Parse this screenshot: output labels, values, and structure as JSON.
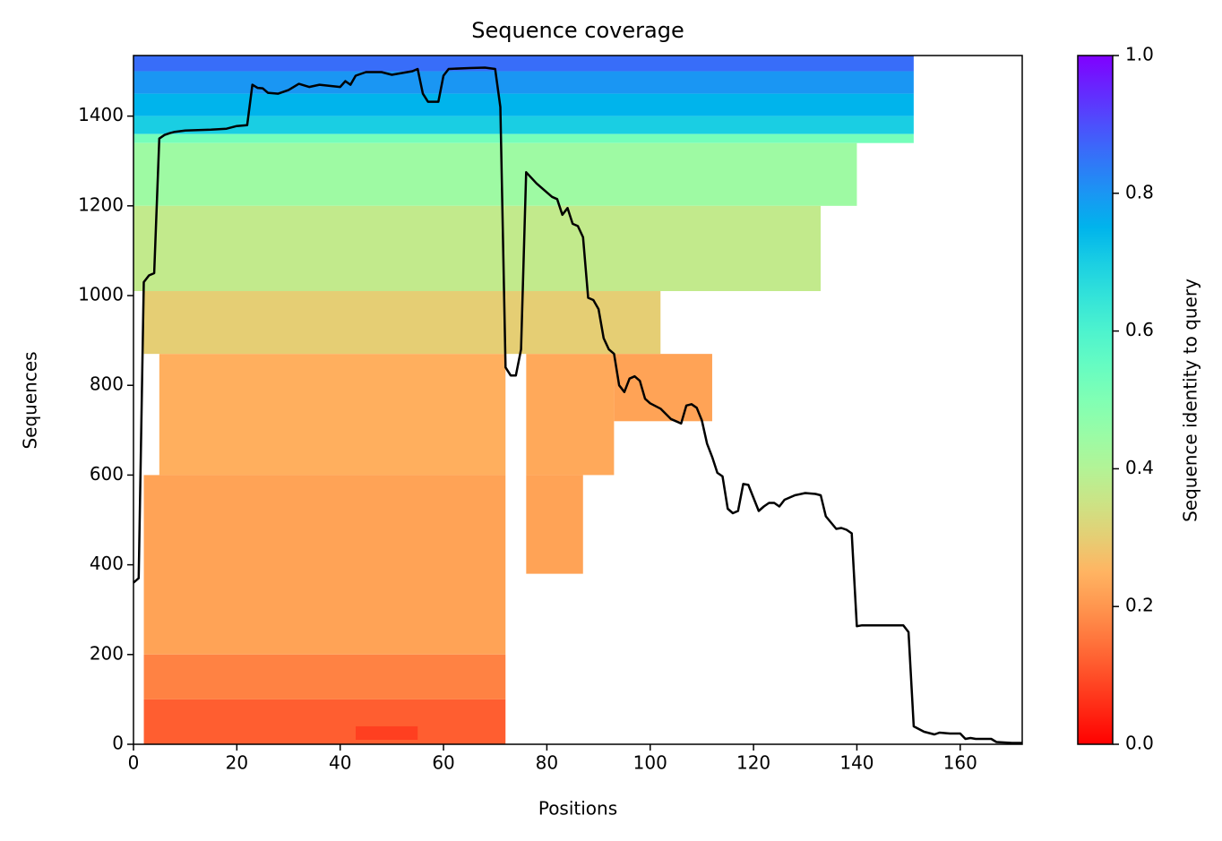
{
  "chart_data": {
    "type": "coverage",
    "title": "Sequence coverage",
    "xlabel": "Positions",
    "ylabel": "Sequences",
    "xlim": [
      0,
      172
    ],
    "ylim": [
      0,
      1535
    ],
    "xticks": [
      0,
      20,
      40,
      60,
      80,
      100,
      120,
      140,
      160
    ],
    "yticks": [
      0,
      200,
      400,
      600,
      800,
      1000,
      1200,
      1400
    ],
    "colorbar": {
      "label": "Sequence identity to query",
      "lim": [
        0,
        1
      ],
      "ticks": [
        {
          "value": 0,
          "label": "0.0"
        },
        0.2,
        0.4,
        0.6,
        0.8,
        {
          "value": 1,
          "label": "1.0"
        }
      ]
    },
    "blocks": [
      {
        "rows": [
          1500,
          1535
        ],
        "positions": [
          0,
          151
        ],
        "identity": 0.86
      },
      {
        "rows": [
          1450,
          1500
        ],
        "positions": [
          0,
          151
        ],
        "identity": 0.8
      },
      {
        "rows": [
          1400,
          1450
        ],
        "positions": [
          0,
          151
        ],
        "identity": 0.75
      },
      {
        "rows": [
          1360,
          1400
        ],
        "positions": [
          0,
          151
        ],
        "identity": 0.7
      },
      {
        "rows": [
          1340,
          1360
        ],
        "positions": [
          0,
          151
        ],
        "identity": 0.52
      },
      {
        "rows": [
          1200,
          1340
        ],
        "positions": [
          0,
          140
        ],
        "identity": 0.44
      },
      {
        "rows": [
          1010,
          1200
        ],
        "positions": [
          0,
          133
        ],
        "identity": 0.37
      },
      {
        "rows": [
          870,
          1010
        ],
        "positions": [
          2,
          102
        ],
        "identity": 0.3
      },
      {
        "rows": [
          600,
          870
        ],
        "positions": [
          5,
          72
        ],
        "identity": 0.24
      },
      {
        "rows": [
          200,
          600
        ],
        "positions": [
          2,
          72
        ],
        "identity": 0.22
      },
      {
        "rows": [
          100,
          200
        ],
        "positions": [
          2,
          72
        ],
        "identity": 0.17
      },
      {
        "rows": [
          0,
          100
        ],
        "positions": [
          2,
          72
        ],
        "identity": 0.12
      },
      {
        "rows": [
          600,
          870
        ],
        "positions": [
          76,
          93
        ],
        "identity": 0.23
      },
      {
        "rows": [
          380,
          600
        ],
        "positions": [
          76,
          87
        ],
        "identity": 0.22
      },
      {
        "rows": [
          720,
          870
        ],
        "positions": [
          93,
          112
        ],
        "identity": 0.22
      },
      {
        "rows": [
          10,
          40
        ],
        "positions": [
          43,
          55
        ],
        "identity": 0.08
      }
    ],
    "coverage": {
      "color": "#000000",
      "x": [
        0,
        1,
        2,
        3,
        4,
        5,
        6,
        7,
        8,
        10,
        15,
        18,
        20,
        22,
        23,
        24,
        25,
        26,
        28,
        30,
        32,
        34,
        36,
        40,
        41,
        42,
        43,
        45,
        48,
        50,
        54,
        55,
        56,
        57,
        59,
        60,
        61,
        65,
        68,
        70,
        71,
        72,
        73,
        74,
        75,
        76,
        78,
        80,
        81,
        82,
        83,
        84,
        85,
        86,
        87,
        88,
        89,
        90,
        91,
        92,
        93,
        94,
        95,
        96,
        97,
        98,
        99,
        100,
        102,
        104,
        106,
        107,
        108,
        109,
        110,
        111,
        112,
        113,
        114,
        115,
        116,
        117,
        118,
        119,
        121,
        122,
        123,
        124,
        125,
        126,
        128,
        130,
        132,
        133,
        134,
        136,
        137,
        138,
        139,
        140,
        141,
        145,
        149,
        150,
        151,
        153,
        155,
        156,
        158,
        160,
        161,
        162,
        163,
        166,
        167,
        170,
        172
      ],
      "values": [
        360,
        370,
        1030,
        1045,
        1050,
        1350,
        1358,
        1362,
        1365,
        1368,
        1370,
        1372,
        1378,
        1380,
        1470,
        1463,
        1462,
        1452,
        1450,
        1458,
        1472,
        1465,
        1470,
        1465,
        1478,
        1470,
        1490,
        1498,
        1498,
        1492,
        1500,
        1505,
        1450,
        1432,
        1432,
        1490,
        1505,
        1507,
        1508,
        1505,
        1420,
        840,
        822,
        822,
        880,
        1275,
        1250,
        1230,
        1220,
        1215,
        1180,
        1195,
        1160,
        1155,
        1130,
        995,
        990,
        970,
        905,
        880,
        870,
        800,
        785,
        815,
        820,
        810,
        770,
        760,
        748,
        725,
        715,
        755,
        758,
        750,
        722,
        670,
        640,
        605,
        597,
        525,
        515,
        520,
        580,
        578,
        520,
        530,
        538,
        538,
        530,
        545,
        555,
        560,
        558,
        555,
        508,
        480,
        482,
        478,
        470,
        263,
        265,
        265,
        265,
        250,
        40,
        28,
        22,
        26,
        24,
        24,
        12,
        14,
        12,
        12,
        5,
        3,
        3
      ]
    }
  }
}
